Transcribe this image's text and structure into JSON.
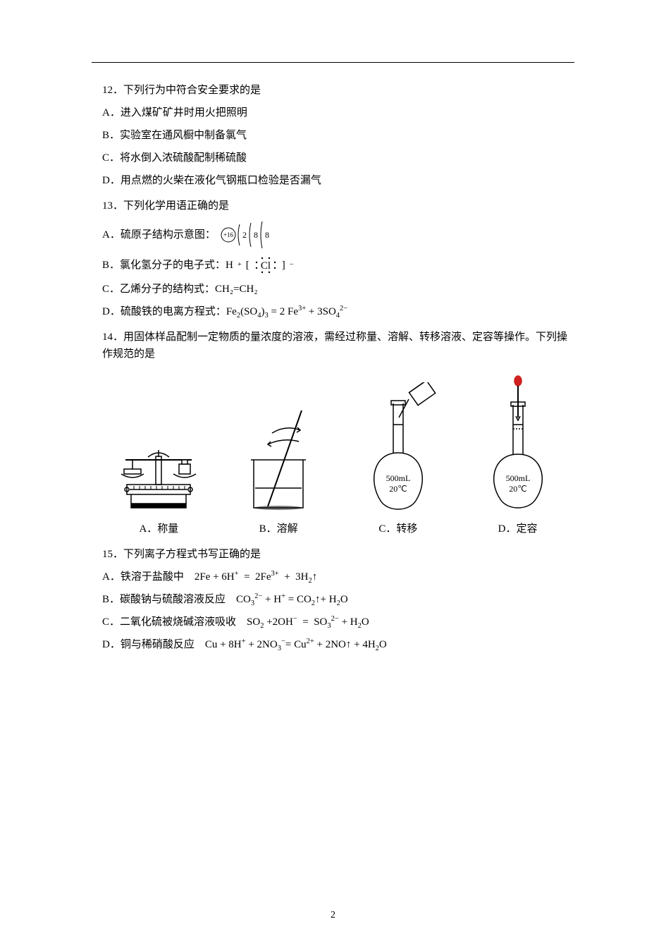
{
  "page_number": "2",
  "q12": {
    "stem": "12．下列行为中符合安全要求的是",
    "A": "A．进入煤矿矿井时用火把照明",
    "B": "B．实验室在通风橱中制备氯气",
    "C": "C．将水倒入浓硫酸配制稀硫酸",
    "D": "D．用点燃的火柴在液化气钢瓶口检验是否漏气"
  },
  "q13": {
    "stem": "13．下列化学用语正确的是",
    "A_prefix": "A．硫原子结构示意图：",
    "A_nucleus": "+16",
    "A_shells": [
      "2",
      "8",
      "8"
    ],
    "B_prefix": "B．氯化氢分子的电子式：H",
    "B_sup1": "+",
    "B_open": " [",
    "B_cl": "Cl",
    "B_close": "]",
    "B_sup2": "−",
    "C_prefix": "C．乙烯分子的结构式：",
    "C_formula": "CH₂=CH₂",
    "D_prefix": "D．硫酸铁的电离方程式：",
    "D_formula_html": "Fe<sub>2</sub>(SO<sub>4</sub>)<sub>3</sub> = 2 Fe<sup>3+</sup> + 3SO<sub>4</sub><sup>2−</sup>"
  },
  "q14": {
    "stem": "14．用固体样品配制一定物质的量浓度的溶液，需经过称量、溶解、转移溶液、定容等操作。下列操作规范的是",
    "captions": {
      "A": "A．称量",
      "B": "B．溶解",
      "C": "C．转移",
      "D": "D．定容"
    },
    "flask_labels": {
      "vol": "500mL",
      "temp": "20℃"
    }
  },
  "q15": {
    "stem": "15．下列离子方程式书写正确的是",
    "A_prefix": "A．铁溶于盐酸中　",
    "A_formula_html": "2Fe + 6H<sup>+</sup>  =  2Fe<sup>3+</sup>  +  3H<sub>2</sub>↑",
    "B_prefix": "B．碳酸钠与硫酸溶液反应　",
    "B_formula_html": "CO<sub>3</sub><sup>2−</sup> + H<sup>+</sup> = CO<sub>2</sub>↑+ H<sub>2</sub>O",
    "C_prefix": "C．二氧化硫被烧碱溶液吸收　",
    "C_formula_html": "SO<sub>2</sub> +2OH<sup>−</sup>  =  SO<sub>3</sub><sup>2−</sup> + H<sub>2</sub>O",
    "D_prefix": "D．铜与稀硝酸反应　",
    "D_formula_html": "Cu + 8H<sup>+</sup> + 2NO<sub>3</sub><sup>−</sup>= Cu<sup>2+</sup> + 2NO↑ + 4H<sub>2</sub>O"
  },
  "style": {
    "stroke": "#000000",
    "fill_none": "none",
    "flask_red": "#d02020"
  }
}
